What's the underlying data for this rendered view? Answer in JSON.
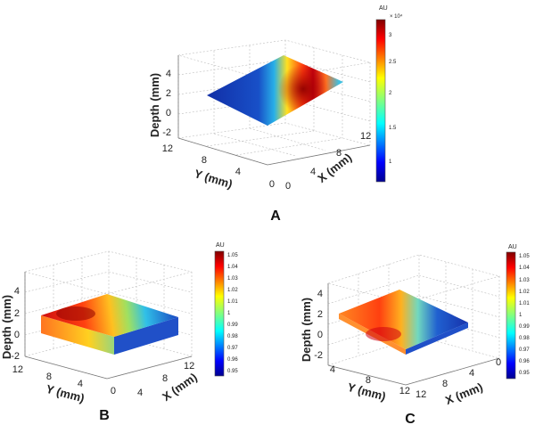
{
  "chart_data": [
    {
      "panel": "A",
      "type": "surface3d",
      "zlabel": "Depth (mm)",
      "ylabel": "Y (mm)",
      "xlabel": "X (mm)",
      "zticks": [
        "4",
        "2",
        "0",
        "-2"
      ],
      "yticks": [
        "12",
        "8",
        "4",
        "0"
      ],
      "xticks": [
        "0",
        "4",
        "8",
        "12"
      ],
      "colorbar": {
        "title": "AU",
        "exponent": "× 10⁴",
        "ticks": [
          "3",
          "2.5",
          "2",
          "1.5",
          "1"
        ],
        "range": [
          0.8,
          3.2
        ]
      },
      "surface_depth_mm": 2,
      "value_range": [
        0.8,
        3.2
      ]
    },
    {
      "panel": "B",
      "type": "slab3d",
      "zlabel": "Depth (mm)",
      "ylabel": "Y (mm)",
      "xlabel": "X (mm)",
      "zticks": [
        "4",
        "2",
        "0",
        "-2"
      ],
      "yticks": [
        "12",
        "8",
        "4",
        "0"
      ],
      "xticks": [
        "4",
        "8",
        "12"
      ],
      "colorbar": {
        "title": "AU",
        "ticks": [
          "1.05",
          "1.04",
          "1.03",
          "1.02",
          "1.01",
          "1",
          "0.99",
          "0.98",
          "0.97",
          "0.96",
          "0.95"
        ],
        "range": [
          0.95,
          1.05
        ]
      },
      "slab_depth_mm": [
        0,
        2
      ]
    },
    {
      "panel": "C",
      "type": "slab3d",
      "zlabel": "Depth (mm)",
      "ylabel": "Y (mm)",
      "xlabel": "X (mm)",
      "zticks": [
        "4",
        "2",
        "0",
        "-2"
      ],
      "yticks": [
        "4",
        "8",
        "12"
      ],
      "xticks": [
        "12",
        "8",
        "4",
        "0"
      ],
      "colorbar": {
        "title": "AU",
        "ticks": [
          "1.05",
          "1.04",
          "1.03",
          "1.02",
          "1.01",
          "1",
          "0.99",
          "0.98",
          "0.97",
          "0.96",
          "0.95"
        ],
        "range": [
          0.95,
          1.05
        ]
      },
      "slab_depth_mm": [
        0,
        2
      ]
    }
  ],
  "panel_labels": {
    "a": "A",
    "b": "B",
    "c": "C"
  }
}
